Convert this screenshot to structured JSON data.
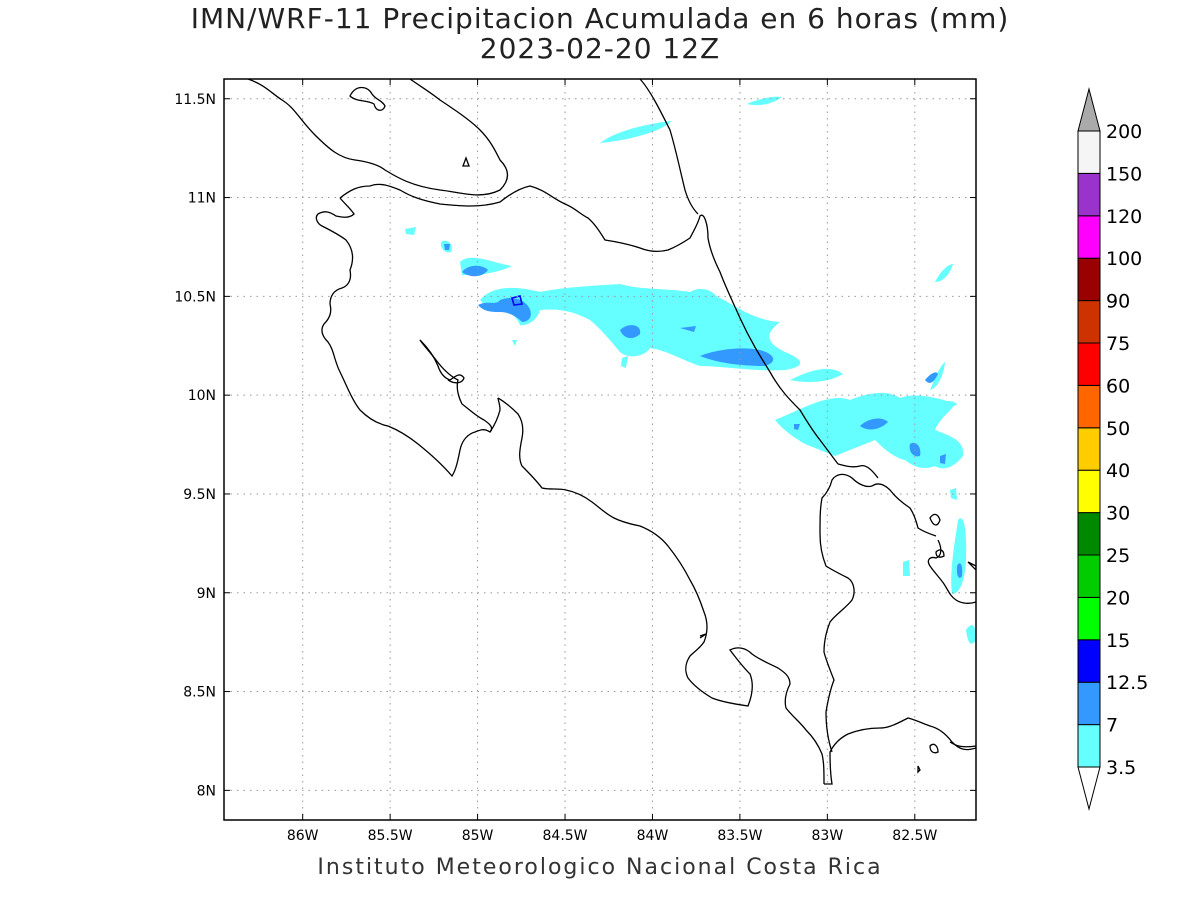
{
  "title": {
    "line1": "IMN/WRF-11 Precipitacion Acumulada en 6 horas (mm)",
    "line2": "2023-02-20 12Z"
  },
  "footer": "Instituto Meteorologico Nacional Costa Rica",
  "map": {
    "lon_range": [
      -86.45,
      -82.15
    ],
    "lat_range": [
      7.85,
      11.6
    ],
    "lon_ticks": [
      {
        "value": -86.0,
        "label": "86W"
      },
      {
        "value": -85.5,
        "label": "85.5W"
      },
      {
        "value": -85.0,
        "label": "85W"
      },
      {
        "value": -84.5,
        "label": "84.5W"
      },
      {
        "value": -84.0,
        "label": "84W"
      },
      {
        "value": -83.5,
        "label": "83.5W"
      },
      {
        "value": -83.0,
        "label": "83W"
      },
      {
        "value": -82.5,
        "label": "82.5W"
      }
    ],
    "lat_ticks": [
      {
        "value": 11.5,
        "label": "11.5N"
      },
      {
        "value": 11.0,
        "label": "11N"
      },
      {
        "value": 10.5,
        "label": "10.5N"
      },
      {
        "value": 10.0,
        "label": "10N"
      },
      {
        "value": 9.5,
        "label": "9.5N"
      },
      {
        "value": 9.0,
        "label": "9N"
      },
      {
        "value": 8.5,
        "label": "8.5N"
      },
      {
        "value": 8.0,
        "label": "8N"
      }
    ],
    "grid": "dotted"
  },
  "colorbar": {
    "levels": [
      "3.5",
      "7",
      "12.5",
      "15",
      "20",
      "25",
      "30",
      "40",
      "50",
      "60",
      "75",
      "90",
      "100",
      "120",
      "150",
      "200"
    ],
    "colors": [
      "#ffffff",
      "#66ffff",
      "#3399ff",
      "#0000ff",
      "#00ff00",
      "#00cc00",
      "#008800",
      "#ffff00",
      "#ffcc00",
      "#ff6600",
      "#ff0000",
      "#cc3300",
      "#990000",
      "#ff00ff",
      "#9933cc",
      "#f5f5f5",
      "#aaaaaa"
    ]
  },
  "colors": {
    "light_cyan": "#66ffff",
    "mid_blue": "#3399ff",
    "dark_blue": "#0000ff",
    "coastline": "#000000"
  }
}
